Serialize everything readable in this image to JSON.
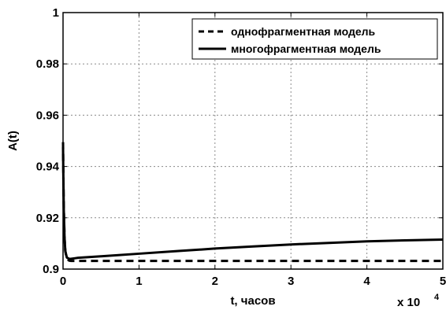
{
  "chart_data": {
    "type": "line",
    "title": "",
    "xlabel": "t, часов",
    "ylabel": "A(t)",
    "x_multiplier": "x 10",
    "x_multiplier_exp": "4",
    "xlim": [
      0,
      5
    ],
    "ylim": [
      0.9,
      1.0
    ],
    "x_ticks": [
      0,
      1,
      2,
      3,
      4,
      5
    ],
    "y_ticks": [
      0.9,
      0.92,
      0.94,
      0.96,
      0.98,
      1.0
    ],
    "x_tick_labels": [
      "0",
      "1",
      "2",
      "3",
      "4",
      "5"
    ],
    "y_tick_labels": [
      "0.9",
      "0.92",
      "0.94",
      "0.96",
      "0.98",
      "1"
    ],
    "grid": true,
    "legend_position": "top-right",
    "series": [
      {
        "name": "однофрагментная модель",
        "style": "dashed",
        "color": "#000000",
        "x": [
          0,
          0.005,
          0.01,
          0.02,
          0.03,
          0.05,
          0.08,
          0.1,
          0.15,
          0.2,
          0.5,
          1,
          2,
          3,
          4,
          5
        ],
        "y": [
          0.9495,
          0.935,
          0.924,
          0.912,
          0.907,
          0.904,
          0.9033,
          0.9032,
          0.9032,
          0.9032,
          0.9032,
          0.9032,
          0.9032,
          0.9032,
          0.9032,
          0.9032
        ]
      },
      {
        "name": "многофрагментная модель",
        "style": "solid",
        "color": "#000000",
        "x": [
          0,
          0.005,
          0.01,
          0.02,
          0.03,
          0.05,
          0.08,
          0.1,
          0.15,
          0.2,
          0.5,
          1,
          1.5,
          2,
          2.5,
          3,
          3.5,
          4,
          4.5,
          5
        ],
        "y": [
          0.9475,
          0.934,
          0.923,
          0.912,
          0.907,
          0.9045,
          0.904,
          0.904,
          0.9042,
          0.9044,
          0.905,
          0.906,
          0.907,
          0.908,
          0.9088,
          0.9096,
          0.9102,
          0.9108,
          0.9112,
          0.9115
        ]
      }
    ]
  }
}
